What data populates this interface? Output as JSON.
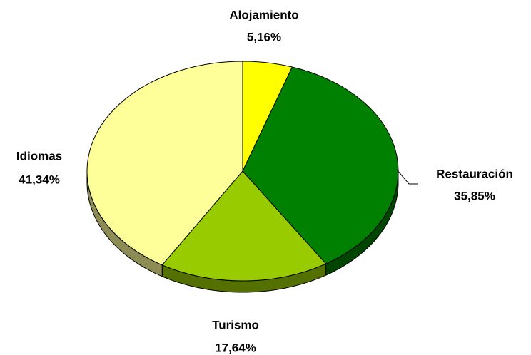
{
  "chart_data": {
    "type": "pie",
    "categories": [
      "Alojamiento",
      "Restauración",
      "Turismo",
      "Idiomas"
    ],
    "values": [
      5.16,
      35.85,
      17.64,
      41.34
    ],
    "value_labels": [
      "5,16%",
      "35,85%",
      "17,64%",
      "41,34%"
    ],
    "colors": [
      "#ffff00",
      "#008000",
      "#99cc00",
      "#ffff99"
    ]
  }
}
